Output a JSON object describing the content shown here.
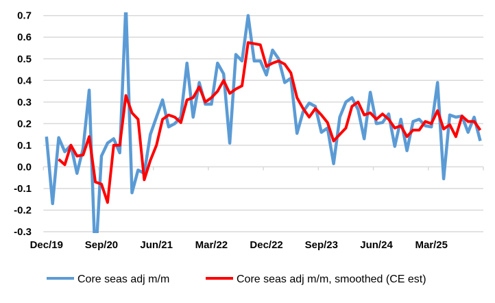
{
  "chart_data": {
    "type": "line",
    "title": "",
    "xlabel": "",
    "ylabel": "",
    "ylim": [
      -0.3,
      0.7
    ],
    "yticks": [
      "0.7",
      "0.6",
      "0.5",
      "0.4",
      "0.3",
      "0.2",
      "0.1",
      "0.0",
      "-0.1",
      "-0.2",
      "-0.3"
    ],
    "ytick_values": [
      0.7,
      0.6,
      0.5,
      0.4,
      0.3,
      0.2,
      0.1,
      0.0,
      -0.1,
      -0.2,
      -0.3
    ],
    "xtick_labels": [
      "Dec/19",
      "Sep/20",
      "Jun/21",
      "Mar/22",
      "Dec/22",
      "Sep/23",
      "Jun/24",
      "Mar/25"
    ],
    "xtick_every": 9,
    "x_start": "Dec/19",
    "x_end": "Nov/25",
    "frequency": "monthly",
    "grid": true,
    "legend_position": "bottom",
    "colors": {
      "blue": "#5b9bd5",
      "red": "#ff0000",
      "grid": "#d9d9d9"
    },
    "series": [
      {
        "name": "Core seas adj m/m",
        "color": "#5b9bd5",
        "values": [
          0.14,
          -0.17,
          0.135,
          0.07,
          0.1,
          -0.03,
          0.085,
          0.355,
          -0.45,
          0.05,
          0.11,
          0.13,
          0.065,
          0.75,
          -0.12,
          -0.015,
          -0.03,
          0.15,
          0.23,
          0.31,
          0.185,
          0.2,
          0.23,
          0.48,
          0.23,
          0.39,
          0.29,
          0.29,
          0.48,
          0.43,
          0.11,
          0.52,
          0.49,
          0.7,
          0.49,
          0.49,
          0.425,
          0.54,
          0.5,
          0.39,
          0.41,
          0.155,
          0.255,
          0.295,
          0.28,
          0.16,
          0.18,
          0.015,
          0.23,
          0.3,
          0.32,
          0.265,
          0.13,
          0.345,
          0.2,
          0.205,
          0.245,
          0.095,
          0.22,
          0.075,
          0.21,
          0.22,
          0.19,
          0.185,
          0.39,
          -0.055,
          0.24,
          0.23,
          0.235,
          0.16,
          0.23,
          0.12
        ]
      },
      {
        "name": "Core seas adj m/m, smoothed (CE est)",
        "color": "#ff0000",
        "values": [
          null,
          null,
          0.035,
          0.01,
          0.1,
          0.05,
          0.055,
          0.14,
          -0.07,
          -0.08,
          -0.165,
          0.1,
          0.1,
          0.33,
          0.25,
          0.22,
          -0.06,
          0.03,
          0.1,
          0.22,
          0.24,
          0.23,
          0.205,
          0.31,
          0.32,
          0.37,
          0.3,
          0.32,
          0.35,
          0.4,
          0.34,
          0.36,
          0.375,
          0.575,
          0.57,
          0.565,
          0.465,
          0.48,
          0.49,
          0.475,
          0.435,
          0.32,
          0.27,
          0.23,
          0.27,
          0.24,
          0.205,
          0.12,
          0.15,
          0.18,
          0.28,
          0.3,
          0.24,
          0.25,
          0.22,
          0.245,
          0.22,
          0.18,
          0.19,
          0.14,
          0.17,
          0.17,
          0.21,
          0.2,
          0.26,
          0.175,
          0.195,
          0.14,
          0.235,
          0.21,
          0.21,
          0.17
        ]
      }
    ]
  }
}
